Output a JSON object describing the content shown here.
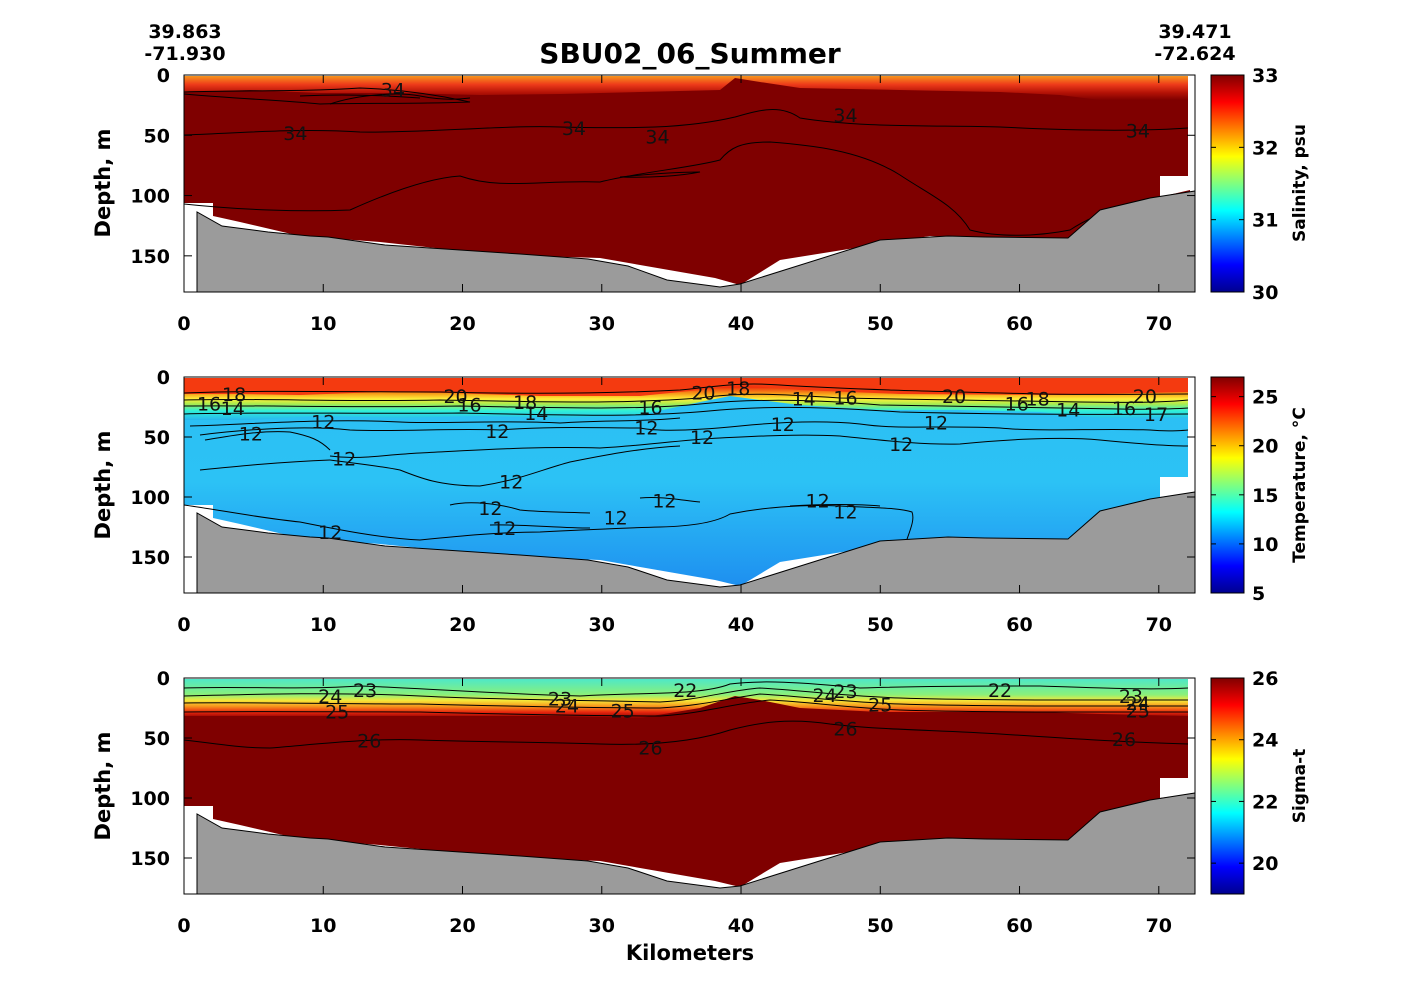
{
  "title": "SBU02_06_Summer",
  "start_coord": {
    "lat": "39.863",
    "lon": "-71.930"
  },
  "end_coord": {
    "lat": "39.471",
    "lon": "-72.624"
  },
  "colors": {
    "dark_red": "#7f0000",
    "bottom_gray": "#9b9b9b",
    "temp_blue": "#28b6f0",
    "sigma_cyan": "#3fe6c2"
  },
  "chart_data": [
    {
      "type": "heatmap",
      "name": "salinity",
      "xlabel": "Kilometers",
      "ylabel": "Depth, m",
      "xlim": [
        0,
        72.6
      ],
      "ylim": [
        180,
        0
      ],
      "x_ticks": [
        0,
        10,
        20,
        30,
        40,
        50,
        60,
        70
      ],
      "y_ticks": [
        0,
        50,
        100,
        150
      ],
      "colorbar": {
        "label": "Salinity, psu",
        "range": [
          30,
          33
        ],
        "ticks": [
          30,
          31,
          32,
          33
        ]
      },
      "contour_labels": [
        {
          "value": "34",
          "x": 15,
          "depth": 12
        },
        {
          "value": "34",
          "x": 8,
          "depth": 48
        },
        {
          "value": "34",
          "x": 28,
          "depth": 44
        },
        {
          "value": "34",
          "x": 34,
          "depth": 51
        },
        {
          "value": "34",
          "x": 47.5,
          "depth": 33
        },
        {
          "value": "34",
          "x": 68.5,
          "depth": 46
        }
      ]
    },
    {
      "type": "heatmap",
      "name": "temperature",
      "xlabel": "Kilometers",
      "ylabel": "Depth, m",
      "xlim": [
        0,
        72.6
      ],
      "ylim": [
        180,
        0
      ],
      "x_ticks": [
        0,
        10,
        20,
        30,
        40,
        50,
        60,
        70
      ],
      "y_ticks": [
        0,
        50,
        100,
        150
      ],
      "colorbar": {
        "label": "Temperature, °C",
        "range": [
          5,
          27
        ],
        "ticks": [
          5,
          10,
          15,
          20,
          25
        ]
      },
      "contour_labels": [
        {
          "value": "18",
          "x": 3.6,
          "depth": 14
        },
        {
          "value": "16",
          "x": 1.8,
          "depth": 22
        },
        {
          "value": "14",
          "x": 3.5,
          "depth": 26
        },
        {
          "value": "12",
          "x": 4.8,
          "depth": 47
        },
        {
          "value": "12",
          "x": 10,
          "depth": 37
        },
        {
          "value": "20",
          "x": 19.5,
          "depth": 16
        },
        {
          "value": "16",
          "x": 20.5,
          "depth": 23
        },
        {
          "value": "18",
          "x": 24.5,
          "depth": 21
        },
        {
          "value": "14",
          "x": 25.3,
          "depth": 30
        },
        {
          "value": "12",
          "x": 22.5,
          "depth": 45
        },
        {
          "value": "12",
          "x": 11.5,
          "depth": 68
        },
        {
          "value": "12",
          "x": 23.5,
          "depth": 87
        },
        {
          "value": "16",
          "x": 33.5,
          "depth": 25
        },
        {
          "value": "20",
          "x": 37.3,
          "depth": 13
        },
        {
          "value": "18",
          "x": 39.8,
          "depth": 9
        },
        {
          "value": "12",
          "x": 33.2,
          "depth": 42
        },
        {
          "value": "12",
          "x": 37.2,
          "depth": 50
        },
        {
          "value": "14",
          "x": 44.5,
          "depth": 18
        },
        {
          "value": "16",
          "x": 47.5,
          "depth": 17
        },
        {
          "value": "12",
          "x": 43,
          "depth": 39
        },
        {
          "value": "12",
          "x": 51.5,
          "depth": 56
        },
        {
          "value": "20",
          "x": 55.3,
          "depth": 16
        },
        {
          "value": "16",
          "x": 59.8,
          "depth": 22
        },
        {
          "value": "18",
          "x": 61.3,
          "depth": 18
        },
        {
          "value": "14",
          "x": 63.5,
          "depth": 27
        },
        {
          "value": "12",
          "x": 54,
          "depth": 38
        },
        {
          "value": "16",
          "x": 67.5,
          "depth": 26
        },
        {
          "value": "17",
          "x": 69.8,
          "depth": 31
        },
        {
          "value": "20",
          "x": 69,
          "depth": 16
        },
        {
          "value": "12",
          "x": 22,
          "depth": 109
        },
        {
          "value": "12",
          "x": 23,
          "depth": 126
        },
        {
          "value": "12",
          "x": 31,
          "depth": 117
        },
        {
          "value": "12",
          "x": 34.5,
          "depth": 103
        },
        {
          "value": "12",
          "x": 45.5,
          "depth": 103
        },
        {
          "value": "12",
          "x": 47.5,
          "depth": 112
        },
        {
          "value": "12",
          "x": 10.5,
          "depth": 129
        }
      ]
    },
    {
      "type": "heatmap",
      "name": "sigma_t",
      "xlabel": "Kilometers",
      "ylabel": "Depth, m",
      "xlim": [
        0,
        72.6
      ],
      "ylim": [
        180,
        0
      ],
      "x_ticks": [
        0,
        10,
        20,
        30,
        40,
        50,
        60,
        70
      ],
      "y_ticks": [
        0,
        50,
        100,
        150
      ],
      "colorbar": {
        "label": "Sigma-t",
        "range": [
          19,
          26
        ],
        "ticks": [
          20,
          22,
          24,
          26
        ]
      },
      "contour_labels": [
        {
          "value": "24",
          "x": 10.5,
          "depth": 15
        },
        {
          "value": "23",
          "x": 13,
          "depth": 10
        },
        {
          "value": "25",
          "x": 11,
          "depth": 28
        },
        {
          "value": "26",
          "x": 13.3,
          "depth": 52
        },
        {
          "value": "23",
          "x": 27,
          "depth": 17
        },
        {
          "value": "24",
          "x": 27.5,
          "depth": 23
        },
        {
          "value": "25",
          "x": 31.5,
          "depth": 27
        },
        {
          "value": "26",
          "x": 33.5,
          "depth": 58
        },
        {
          "value": "22",
          "x": 36,
          "depth": 10
        },
        {
          "value": "24",
          "x": 46,
          "depth": 14
        },
        {
          "value": "23",
          "x": 47.5,
          "depth": 11
        },
        {
          "value": "25",
          "x": 50,
          "depth": 22
        },
        {
          "value": "26",
          "x": 47.5,
          "depth": 42
        },
        {
          "value": "22",
          "x": 58.6,
          "depth": 10
        },
        {
          "value": "23",
          "x": 68,
          "depth": 15
        },
        {
          "value": "24",
          "x": 68.5,
          "depth": 21
        },
        {
          "value": "25",
          "x": 68.5,
          "depth": 27
        },
        {
          "value": "26",
          "x": 67.5,
          "depth": 51
        }
      ]
    }
  ]
}
